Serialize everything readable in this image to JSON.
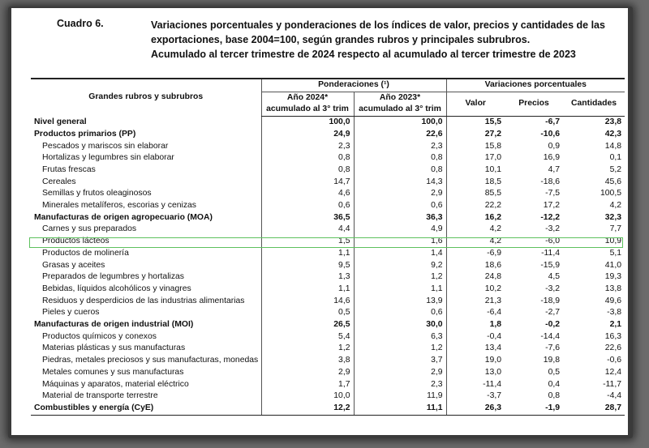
{
  "caption": {
    "number": "Cuadro 6.",
    "title_lines": [
      "Variaciones porcentuales y ponderaciones de los índices de valor, precios y cantidades de las",
      "exportaciones, base 2004=100, según grandes rubros y principales subrubros.",
      "Acumulado al tercer trimestre de 2024 respecto al acumulado al tercer trimestre de 2023"
    ]
  },
  "headers": {
    "rubros": "Grandes rubros y subrubros",
    "ponderaciones": "Ponderaciones (¹)",
    "variaciones": "Variaciones porcentuales",
    "anio2024_l1": "Año 2024*",
    "anio2024_l2": "acumulado al 3° trim",
    "anio2023_l1": "Año 2023*",
    "anio2023_l2": "acumulado al 3° trim",
    "valor": "Valor",
    "precios": "Precios",
    "cantidades": "Cantidades"
  },
  "rows": [
    {
      "name": "Nivel general",
      "p2024": "100,0",
      "p2023": "100,0",
      "valor": "15,5",
      "precios": "-6,7",
      "cantidades": "23,8",
      "bold": true
    },
    {
      "name": "Productos primarios (PP)",
      "p2024": "24,9",
      "p2023": "22,6",
      "valor": "27,2",
      "precios": "-10,6",
      "cantidades": "42,3",
      "bold": true
    },
    {
      "name": "Pescados y mariscos sin elaborar",
      "p2024": "2,3",
      "p2023": "2,3",
      "valor": "15,8",
      "precios": "0,9",
      "cantidades": "14,8"
    },
    {
      "name": "Hortalizas y legumbres sin elaborar",
      "p2024": "0,8",
      "p2023": "0,8",
      "valor": "17,0",
      "precios": "16,9",
      "cantidades": "0,1"
    },
    {
      "name": "Frutas frescas",
      "p2024": "0,8",
      "p2023": "0,8",
      "valor": "10,1",
      "precios": "4,7",
      "cantidades": "5,2"
    },
    {
      "name": "Cereales",
      "p2024": "14,7",
      "p2023": "14,3",
      "valor": "18,5",
      "precios": "-18,6",
      "cantidades": "45,6"
    },
    {
      "name": "Semillas y frutos oleaginosos",
      "p2024": "4,6",
      "p2023": "2,9",
      "valor": "85,5",
      "precios": "-7,5",
      "cantidades": "100,5"
    },
    {
      "name": "Minerales metalíferos, escorias y cenizas",
      "p2024": "0,6",
      "p2023": "0,6",
      "valor": "22,2",
      "precios": "17,2",
      "cantidades": "4,2"
    },
    {
      "name": "Manufacturas de origen agropecuario (MOA)",
      "p2024": "36,5",
      "p2023": "36,3",
      "valor": "16,2",
      "precios": "-12,2",
      "cantidades": "32,3",
      "bold": true
    },
    {
      "name": "Carnes y sus preparados",
      "p2024": "4,4",
      "p2023": "4,9",
      "valor": "4,2",
      "precios": "-3,2",
      "cantidades": "7,7"
    },
    {
      "name": "Productos lácteos",
      "p2024": "1,5",
      "p2023": "1,6",
      "valor": "4,2",
      "precios": "-6,0",
      "cantidades": "10,9"
    },
    {
      "name": "Productos de molinería",
      "p2024": "1,1",
      "p2023": "1,4",
      "valor": "-6,9",
      "precios": "-11,4",
      "cantidades": "5,1"
    },
    {
      "name": "Grasas y aceites",
      "p2024": "9,5",
      "p2023": "9,2",
      "valor": "18,6",
      "precios": "-15,9",
      "cantidades": "41,0"
    },
    {
      "name": "Preparados de legumbres y hortalizas",
      "p2024": "1,3",
      "p2023": "1,2",
      "valor": "24,8",
      "precios": "4,5",
      "cantidades": "19,3"
    },
    {
      "name": "Bebidas, líquidos alcohólicos y vinagres",
      "p2024": "1,1",
      "p2023": "1,1",
      "valor": "10,2",
      "precios": "-3,2",
      "cantidades": "13,8"
    },
    {
      "name": "Residuos y desperdicios de las industrias alimentarias",
      "p2024": "14,6",
      "p2023": "13,9",
      "valor": "21,3",
      "precios": "-18,9",
      "cantidades": "49,6"
    },
    {
      "name": "Pieles y cueros",
      "p2024": "0,5",
      "p2023": "0,6",
      "valor": "-6,4",
      "precios": "-2,7",
      "cantidades": "-3,8"
    },
    {
      "name": "Manufacturas de origen industrial (MOI)",
      "p2024": "26,5",
      "p2023": "30,0",
      "valor": "1,8",
      "precios": "-0,2",
      "cantidades": "2,1",
      "bold": true
    },
    {
      "name": "Productos químicos y conexos",
      "p2024": "5,4",
      "p2023": "6,3",
      "valor": "-0,4",
      "precios": "-14,4",
      "cantidades": "16,3"
    },
    {
      "name": "Materias plásticas y sus manufacturas",
      "p2024": "1,2",
      "p2023": "1,2",
      "valor": "13,4",
      "precios": "-7,6",
      "cantidades": "22,6"
    },
    {
      "name": "Piedras, metales preciosos y sus manufacturas, monedas",
      "p2024": "3,8",
      "p2023": "3,7",
      "valor": "19,0",
      "precios": "19,8",
      "cantidades": "-0,6"
    },
    {
      "name": "Metales comunes y sus manufacturas",
      "p2024": "2,9",
      "p2023": "2,9",
      "valor": "13,0",
      "precios": "0,5",
      "cantidades": "12,4"
    },
    {
      "name": "Máquinas y aparatos, material eléctrico",
      "p2024": "1,7",
      "p2023": "2,3",
      "valor": "-11,4",
      "precios": "0,4",
      "cantidades": "-11,7"
    },
    {
      "name": "Material de transporte terrestre",
      "p2024": "10,0",
      "p2023": "11,9",
      "valor": "-3,7",
      "precios": "0,8",
      "cantidades": "-4,4"
    },
    {
      "name": "Combustibles y energía (CyE)",
      "p2024": "12,2",
      "p2023": "11,1",
      "valor": "26,3",
      "precios": "-1,9",
      "cantidades": "28,7",
      "bold": true
    }
  ]
}
